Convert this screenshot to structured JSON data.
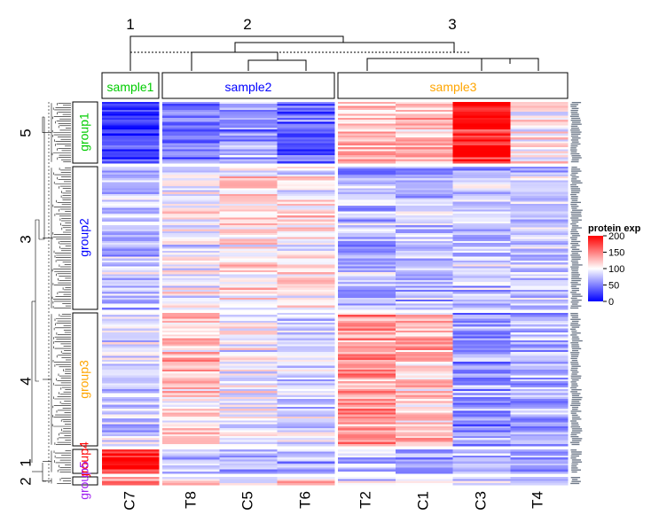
{
  "chart_data": {
    "type": "heatmap",
    "title": "",
    "column_clusters": [
      {
        "id": "1",
        "label": "sample1",
        "color": "#00cc00",
        "columns": [
          "C7"
        ]
      },
      {
        "id": "2",
        "label": "sample2",
        "color": "#0000ff",
        "columns": [
          "T8",
          "C5",
          "T6"
        ]
      },
      {
        "id": "3",
        "label": "sample3",
        "color": "#ffa500",
        "columns": [
          "T2",
          "C1",
          "C3",
          "T4"
        ]
      }
    ],
    "columns": [
      "C7",
      "T8",
      "C5",
      "T6",
      "T2",
      "C1",
      "C3",
      "T4"
    ],
    "row_clusters": [
      {
        "id": "5",
        "label": "group1",
        "color": "#00cc00",
        "column_means": [
          20,
          45,
          60,
          40,
          120,
          125,
          185,
          105
        ]
      },
      {
        "id": "3",
        "label": "group2",
        "color": "#0000ff",
        "column_means": [
          75,
          95,
          110,
          105,
          70,
          75,
          75,
          80
        ]
      },
      {
        "id": "4",
        "label": "group3",
        "color": "#ffa500",
        "column_means": [
          85,
          120,
          95,
          85,
          140,
          120,
          60,
          70
        ]
      },
      {
        "id": "1",
        "label": "group4",
        "color": "#ff0000",
        "column_means": [
          190,
          80,
          70,
          75,
          80,
          70,
          65,
          70
        ]
      },
      {
        "id": "2",
        "label": "group5",
        "color": "#a020f0",
        "column_means": [
          150,
          100,
          95,
          110,
          90,
          85,
          80,
          85
        ]
      }
    ],
    "legend": {
      "title": "protein exp",
      "ticks": [
        200,
        150,
        100,
        50,
        0
      ],
      "range": [
        0,
        200
      ],
      "colors": {
        "low": "#0000ff",
        "mid": "#ffffff",
        "high": "#ff0000"
      },
      "placement": "right"
    }
  }
}
